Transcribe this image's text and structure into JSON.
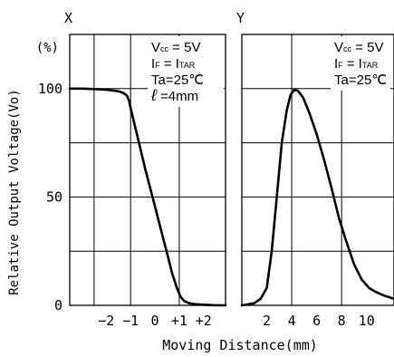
{
  "chart_data": [
    {
      "type": "line",
      "panel_label": "X",
      "ylabel": "Relative Output Voltage(Vo)",
      "yunit": "(%)",
      "xlim": [
        -3.5,
        2.9
      ],
      "ylim": [
        0,
        125
      ],
      "xticks": [
        {
          "value": -2,
          "label": "−2"
        },
        {
          "value": -1,
          "label": "−1"
        },
        {
          "value": 0,
          "label": "0"
        },
        {
          "value": 1,
          "label": "+1"
        },
        {
          "value": 2,
          "label": "+2"
        }
      ],
      "yticks": [
        {
          "value": 0,
          "label": "0"
        },
        {
          "value": 50,
          "label": "50"
        },
        {
          "value": 100,
          "label": "100"
        }
      ],
      "vgrid": [
        -2.5,
        -1,
        1
      ],
      "hgrid": [
        25,
        50,
        75,
        100
      ],
      "grid": true,
      "conditions": [
        {
          "main": "V",
          "sub": "cc",
          "rest": " = 5V"
        },
        {
          "main": "I",
          "sub": "F",
          "rest": " = I",
          "sub2": "TAR"
        },
        {
          "main": "Ta=25℃",
          "sub": "",
          "rest": ""
        },
        {
          "main": "ℓ",
          "sub": "",
          "rest": " =4mm"
        }
      ],
      "x": [
        -3.5,
        -3.0,
        -2.5,
        -2.0,
        -1.5,
        -1.3,
        -1.15,
        -1.05,
        -1.0,
        -0.7,
        -0.4,
        -0.1,
        0.2,
        0.5,
        0.7,
        0.9,
        1.05,
        1.2,
        1.4,
        1.7,
        2.0,
        2.4,
        2.9
      ],
      "y": [
        100,
        100,
        99.8,
        99.5,
        98.8,
        98,
        96.8,
        94,
        91,
        77,
        63,
        50,
        37,
        24,
        15,
        8,
        4,
        2,
        1,
        0.5,
        0.3,
        0.1,
        0
      ]
    },
    {
      "type": "line",
      "panel_label": "Y",
      "xlabel": "Moving Distance(mm)",
      "xlim": [
        0,
        12.2
      ],
      "ylim": [
        0,
        125
      ],
      "xticks": [
        {
          "value": 2,
          "label": "2"
        },
        {
          "value": 4,
          "label": "4"
        },
        {
          "value": 6,
          "label": "6"
        },
        {
          "value": 8,
          "label": "8"
        },
        {
          "value": 10,
          "label": "10"
        }
      ],
      "vgrid": [
        4,
        8
      ],
      "hgrid": [
        25,
        50,
        75,
        100
      ],
      "grid": true,
      "conditions": [
        {
          "main": "V",
          "sub": "cc",
          "rest": " = 5V"
        },
        {
          "main": "I",
          "sub": "F",
          "rest": " = I",
          "sub2": "TAR"
        },
        {
          "main": "Ta=25℃",
          "sub": "",
          "rest": ""
        }
      ],
      "x": [
        0,
        1.0,
        1.5,
        2.0,
        2.4,
        2.8,
        3.2,
        3.6,
        3.9,
        4.2,
        4.5,
        4.9,
        5.4,
        6.0,
        6.6,
        7.2,
        7.8,
        8.4,
        9.0,
        9.6,
        10.2,
        10.8,
        11.4,
        12.2
      ],
      "y": [
        0,
        1,
        3,
        8,
        25,
        50,
        75,
        90,
        97,
        99.5,
        99,
        96,
        89,
        79,
        67,
        54,
        40,
        29,
        19,
        12,
        8,
        6,
        4.5,
        3
      ]
    }
  ]
}
